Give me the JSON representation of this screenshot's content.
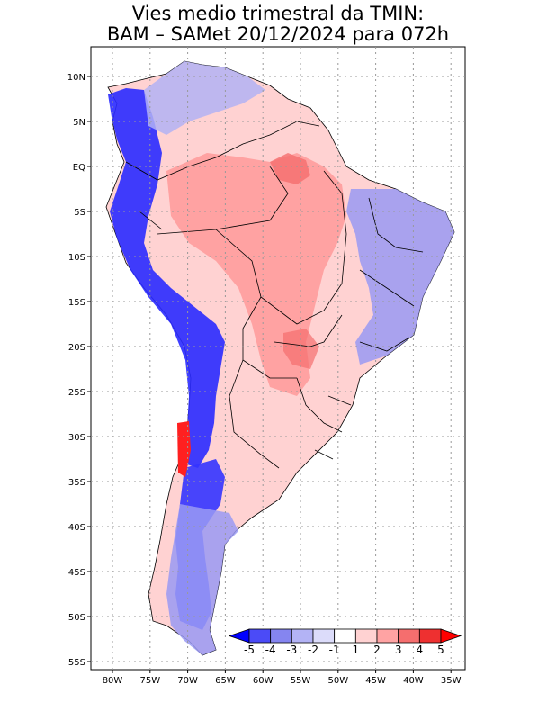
{
  "title": {
    "line1": "Vies medio trimestral da TMIN:",
    "line2": "BAM – SAMet 20/12/2024  para 072h"
  },
  "map": {
    "lon_range": [
      -83,
      -34
    ],
    "lat_range": [
      -56,
      13
    ],
    "lat_ticks": [
      {
        "value": 10,
        "label": "10N"
      },
      {
        "value": 5,
        "label": "5N"
      },
      {
        "value": 0,
        "label": "EQ"
      },
      {
        "value": -5,
        "label": "5S"
      },
      {
        "value": -10,
        "label": "10S"
      },
      {
        "value": -15,
        "label": "15S"
      },
      {
        "value": -20,
        "label": "20S"
      },
      {
        "value": -25,
        "label": "25S"
      },
      {
        "value": -30,
        "label": "30S"
      },
      {
        "value": -35,
        "label": "35S"
      },
      {
        "value": -40,
        "label": "40S"
      },
      {
        "value": -45,
        "label": "45S"
      },
      {
        "value": -50,
        "label": "50S"
      },
      {
        "value": -55,
        "label": "55S"
      }
    ],
    "lon_ticks": [
      {
        "value": -80,
        "label": "80W"
      },
      {
        "value": -75,
        "label": "75W"
      },
      {
        "value": -70,
        "label": "70W"
      },
      {
        "value": -65,
        "label": "65W"
      },
      {
        "value": -60,
        "label": "60W"
      },
      {
        "value": -55,
        "label": "55W"
      },
      {
        "value": -50,
        "label": "50W"
      },
      {
        "value": -45,
        "label": "45W"
      },
      {
        "value": -40,
        "label": "40W"
      },
      {
        "value": -35,
        "label": "35W"
      }
    ],
    "grid": true
  },
  "colorbar": {
    "labels": [
      "-5",
      "-4",
      "-3",
      "-2",
      "-1",
      "1",
      "2",
      "3",
      "4",
      "5"
    ],
    "colors": [
      "#0000ff",
      "#4b4bf7",
      "#8585f0",
      "#b3b3f5",
      "#dcdcfa",
      "#ffffff",
      "#ffd2d2",
      "#ffa3a3",
      "#f56e6e",
      "#ee3030",
      "#ff0000"
    ]
  }
}
